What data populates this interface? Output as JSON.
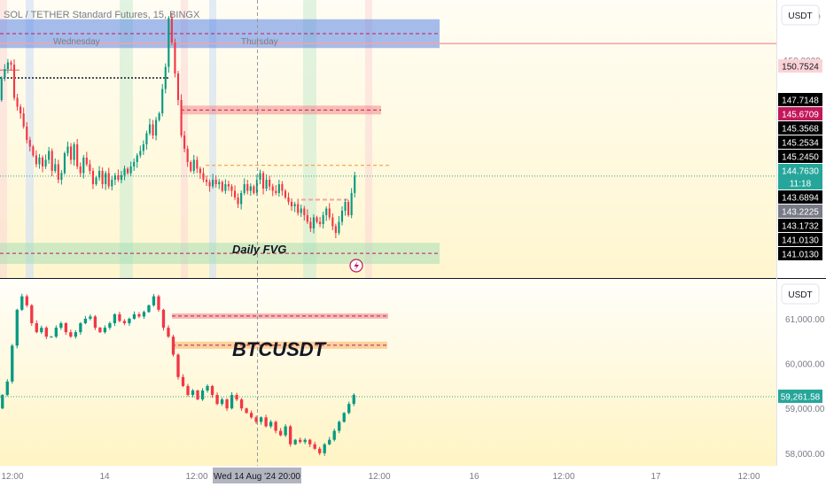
{
  "chart_data": [
    {
      "type": "candlestick",
      "title": "SOL / TETHER Standard Futures, 15, BINGX",
      "currency_button": "USDT",
      "day_labels": [
        "Wednesday",
        "Thursday"
      ],
      "ylim": [
        140.4,
        152.4
      ],
      "y_ticks": [
        152.0,
        150.0
      ],
      "y_tick_labels": [
        "152.0000",
        "150.0000"
      ],
      "price_labels": [
        {
          "text": "150.7524",
          "value": 150.7524,
          "bg": "#fbd3d6",
          "fg": "#131722"
        },
        {
          "text": "147.7148",
          "value": 147.7148,
          "bg": "#000000",
          "fg": "#ffffff"
        },
        {
          "text": "145.6709",
          "value": 145.6709,
          "bg": "#c2185b",
          "fg": "#ffffff"
        },
        {
          "text": "145.3568",
          "value": 145.3568,
          "bg": "#000000",
          "fg": "#ffffff"
        },
        {
          "text": "145.2534",
          "value": 145.2534,
          "bg": "#000000",
          "fg": "#ffffff"
        },
        {
          "text": "145.2450",
          "value": 145.245,
          "bg": "#000000",
          "fg": "#ffffff"
        },
        {
          "text": "144.7630",
          "value": 144.763,
          "bg": "#26a69a",
          "fg": "#ffffff"
        },
        {
          "text": "11:18",
          "value": 144.763,
          "bg": "#26a69a",
          "fg": "#ffffff"
        },
        {
          "text": "143.6894",
          "value": 143.6894,
          "bg": "#000000",
          "fg": "#ffffff"
        },
        {
          "text": "143.2225",
          "value": 143.2225,
          "bg": "#787b86",
          "fg": "#ffffff"
        },
        {
          "text": "143.1732",
          "value": 143.1732,
          "bg": "#000000",
          "fg": "#ffffff"
        },
        {
          "text": "141.0130",
          "value": 141.013,
          "bg": "#000000",
          "fg": "#ffffff"
        },
        {
          "text": "141.0130",
          "value": 141.013,
          "bg": "#000000",
          "fg": "#ffffff"
        }
      ],
      "zones": [
        {
          "name": "blue-zone",
          "from": 150.55,
          "to": 151.85,
          "color": "#5b86e5"
        },
        {
          "name": "red-zone",
          "from": 147.55,
          "to": 147.95,
          "color": "#f28b8b"
        },
        {
          "name": "daily-fvg-zone",
          "from": 140.8,
          "to": 141.75,
          "color": "#a8dfb4"
        }
      ],
      "annotation": "Daily FVG",
      "last_price": 144.763,
      "candles_close": [
        149.2,
        149.6,
        149.9,
        149.8,
        148.3,
        147.9,
        147.6,
        147.0,
        146.4,
        146.1,
        145.7,
        145.3,
        145.6,
        145.2,
        145.5,
        145.9,
        145.0,
        145.3,
        144.6,
        144.9,
        145.8,
        146.1,
        145.5,
        146.2,
        145.2,
        144.9,
        145.6,
        145.3,
        145.0,
        144.4,
        144.7,
        145.0,
        144.4,
        144.9,
        144.3,
        144.6,
        144.8,
        144.6,
        144.8,
        145.1,
        144.9,
        145.2,
        145.4,
        145.7,
        145.9,
        146.2,
        146.7,
        147.1,
        146.6,
        147.3,
        147.6,
        148.7,
        149.7,
        151.9,
        150.8,
        149.4,
        148.2,
        146.6,
        146.0,
        145.4,
        145.0,
        145.5,
        145.1,
        144.9,
        144.6,
        144.5,
        144.3,
        144.6,
        144.4,
        144.5,
        144.1,
        144.4,
        144.3,
        144.1,
        143.8,
        143.5,
        144.0,
        144.4,
        144.1,
        144.3,
        144.0,
        144.6,
        144.9,
        144.2,
        144.6,
        144.3,
        144.1,
        144.0,
        144.4,
        144.1,
        143.8,
        143.6,
        143.4,
        143.5,
        143.1,
        143.3,
        143.0,
        142.7,
        142.4,
        142.9,
        142.7,
        142.6,
        143.0,
        143.3,
        142.9,
        142.5,
        142.2,
        142.7,
        143.2,
        143.6,
        143.0,
        144.0,
        144.8
      ]
    },
    {
      "type": "candlestick",
      "title": "BTCUSDT",
      "currency_button": "USDT",
      "ylim": [
        57800,
        61750
      ],
      "y_ticks": [
        61000,
        60000,
        59000,
        58000
      ],
      "y_tick_labels": [
        "61,000.00",
        "60,000.00",
        "59,000.00",
        "58,000.00"
      ],
      "zones": [
        {
          "name": "red-zone",
          "from": 61030,
          "to": 61120,
          "color": "#f28b8b"
        },
        {
          "name": "orange-zone",
          "from": 60330,
          "to": 60490,
          "color": "#f9b96b"
        }
      ],
      "last_price": 59261.58,
      "last_price_label": "59,261.58",
      "x_tick_labels": [
        "12:00",
        "14",
        "12:00",
        "12:00",
        "16",
        "12:00",
        "17",
        "12:00"
      ],
      "crosshair_label": "Wed 14 Aug '24  20:00",
      "candles_close": [
        59300,
        59600,
        60400,
        61200,
        61500,
        61300,
        60900,
        60700,
        60800,
        60600,
        60600,
        60800,
        60900,
        60700,
        60600,
        60700,
        60900,
        61000,
        61050,
        60800,
        60700,
        60800,
        60900,
        61100,
        60950,
        60900,
        61000,
        61100,
        61050,
        61150,
        61300,
        61500,
        61200,
        60800,
        60600,
        60200,
        59700,
        59500,
        59300,
        59400,
        59200,
        59400,
        59500,
        59300,
        59100,
        59200,
        59000,
        59300,
        59200,
        59000,
        58900,
        58800,
        58700,
        58800,
        58600,
        58700,
        58500,
        58400,
        58600,
        58200,
        58300,
        58250,
        58300,
        58200,
        58100,
        58000,
        58200,
        58300,
        58500,
        58700,
        58900,
        59100,
        59300
      ]
    }
  ]
}
